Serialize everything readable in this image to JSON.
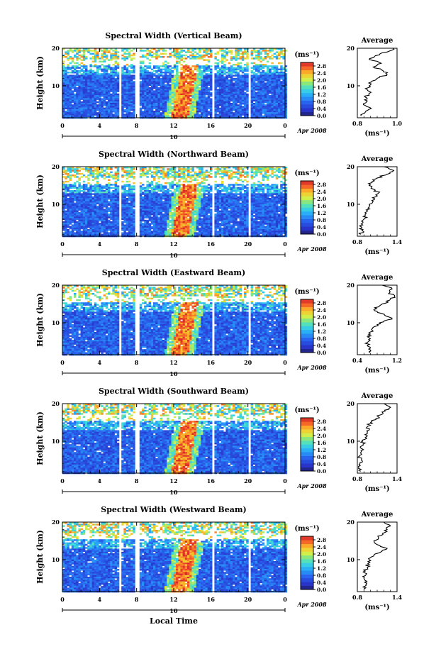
{
  "figure": {
    "shared_xlabel": "Local Time",
    "date_label": "Apr 2008",
    "day_label": "10",
    "colorbar_unit": "(ms⁻¹)",
    "ylabel": "Height (km)"
  },
  "chart_data": [
    {
      "type": "heatmap",
      "title": "Spectral Width (Vertical Beam)",
      "xlabel": "Local Time",
      "ylabel": "Height (km)",
      "x_ticks": [
        "0",
        "4",
        "8",
        "12",
        "16",
        "20",
        "0"
      ],
      "y_ticks": [
        "10",
        "20"
      ],
      "xlim": [
        0,
        24
      ],
      "ylim": [
        1.5,
        20
      ],
      "colorbar_label": "(ms⁻¹)",
      "colorbar_ticks": [
        "0.0",
        "0.4",
        "0.8",
        "1.2",
        "1.6",
        "2.0",
        "2.4",
        "2.8"
      ],
      "colorbar_range": [
        0,
        3.0
      ],
      "data_gaps_hours": [
        [
          5.9,
          6.2
        ],
        [
          7.8,
          8.1
        ],
        [
          16.0,
          16.3
        ],
        [
          20.0,
          20.3
        ]
      ],
      "features": {
        "max_band_time": 13.0,
        "max_band_height_range": [
          1.5,
          15.5
        ]
      },
      "average": {
        "title": "Average",
        "xlabel": "(ms⁻¹)",
        "x_ticks": [
          "0.8",
          "1.0"
        ],
        "xlim": [
          0.8,
          1.0
        ],
        "y_ticks": [
          "10",
          "20"
        ],
        "ylim": [
          1.5,
          20
        ],
        "profile": [
          [
            0.82,
            2
          ],
          [
            0.84,
            3
          ],
          [
            0.87,
            4
          ],
          [
            0.83,
            5
          ],
          [
            0.85,
            6
          ],
          [
            0.84,
            7
          ],
          [
            0.86,
            8
          ],
          [
            0.85,
            9
          ],
          [
            0.86,
            10
          ],
          [
            0.87,
            11
          ],
          [
            0.9,
            12
          ],
          [
            0.95,
            13
          ],
          [
            0.93,
            14
          ],
          [
            0.88,
            15
          ],
          [
            0.92,
            16
          ],
          [
            0.86,
            17
          ],
          [
            0.89,
            18
          ],
          [
            0.95,
            19
          ],
          [
            0.98,
            20
          ]
        ]
      }
    },
    {
      "type": "heatmap",
      "title": "Spectral Width (Northward Beam)",
      "xlabel": "Local Time",
      "ylabel": "Height (km)",
      "x_ticks": [
        "0",
        "4",
        "8",
        "12",
        "16",
        "20",
        "0"
      ],
      "y_ticks": [
        "10",
        "20"
      ],
      "xlim": [
        0,
        24
      ],
      "ylim": [
        1.5,
        20
      ],
      "colorbar_label": "(ms⁻¹)",
      "colorbar_ticks": [
        "0.0",
        "0.4",
        "0.8",
        "1.2",
        "1.6",
        "2.0",
        "2.4",
        "2.8"
      ],
      "colorbar_range": [
        0,
        3.0
      ],
      "data_gaps_hours": [
        [
          5.9,
          6.2
        ],
        [
          7.8,
          8.1
        ],
        [
          16.0,
          16.3
        ],
        [
          20.0,
          20.3
        ]
      ],
      "features": {
        "max_band_time": 13.0,
        "max_band_height_range": [
          1.5,
          15.5
        ]
      },
      "average": {
        "title": "Average",
        "xlabel": "(ms⁻¹)",
        "x_ticks": [
          "0.8",
          "1.4"
        ],
        "xlim": [
          0.8,
          1.4
        ],
        "y_ticks": [
          "10",
          "20"
        ],
        "ylim": [
          1.5,
          20
        ],
        "profile": [
          [
            0.85,
            2
          ],
          [
            0.87,
            3
          ],
          [
            0.86,
            4
          ],
          [
            0.88,
            5
          ],
          [
            0.9,
            6
          ],
          [
            0.92,
            7
          ],
          [
            0.94,
            8
          ],
          [
            0.96,
            9
          ],
          [
            0.98,
            10
          ],
          [
            1.02,
            11
          ],
          [
            1.08,
            12
          ],
          [
            1.12,
            13
          ],
          [
            1.05,
            14
          ],
          [
            0.98,
            15
          ],
          [
            1.02,
            16
          ],
          [
            1.1,
            17
          ],
          [
            1.25,
            18
          ],
          [
            1.35,
            19
          ],
          [
            1.2,
            20
          ]
        ]
      }
    },
    {
      "type": "heatmap",
      "title": "Spectral Width (Eastward Beam)",
      "xlabel": "Local Time",
      "ylabel": "Height (km)",
      "x_ticks": [
        "0",
        "4",
        "8",
        "12",
        "16",
        "20",
        "0"
      ],
      "y_ticks": [
        "10",
        "20"
      ],
      "xlim": [
        0,
        24
      ],
      "ylim": [
        1.5,
        20
      ],
      "colorbar_label": "(ms⁻¹)",
      "colorbar_ticks": [
        "0.0",
        "0.4",
        "0.8",
        "1.2",
        "1.6",
        "2.0",
        "2.4",
        "2.8"
      ],
      "colorbar_range": [
        0,
        3.0
      ],
      "data_gaps_hours": [
        [
          5.9,
          6.2
        ],
        [
          7.8,
          8.1
        ],
        [
          16.0,
          16.3
        ],
        [
          20.0,
          20.3
        ]
      ],
      "features": {
        "max_band_time": 13.0,
        "max_band_height_range": [
          1.5,
          15.5
        ]
      },
      "average": {
        "title": "Average",
        "xlabel": "(ms⁻¹)",
        "x_ticks": [
          "0.4",
          "1.2"
        ],
        "xlim": [
          0.4,
          1.2
        ],
        "y_ticks": [
          "10",
          "20"
        ],
        "ylim": [
          1.5,
          20
        ],
        "profile": [
          [
            0.65,
            2
          ],
          [
            0.63,
            3
          ],
          [
            0.6,
            4
          ],
          [
            0.62,
            5
          ],
          [
            0.64,
            6
          ],
          [
            0.66,
            7
          ],
          [
            0.7,
            8
          ],
          [
            0.75,
            9
          ],
          [
            0.85,
            10
          ],
          [
            1.1,
            11
          ],
          [
            0.95,
            12
          ],
          [
            0.8,
            13
          ],
          [
            0.75,
            14
          ],
          [
            0.9,
            15
          ],
          [
            1.05,
            16
          ],
          [
            1.15,
            17
          ],
          [
            1.05,
            18
          ],
          [
            1.1,
            19
          ],
          [
            0.9,
            20
          ]
        ]
      }
    },
    {
      "type": "heatmap",
      "title": "Spectral Width (Southward Beam)",
      "xlabel": "Local Time",
      "ylabel": "Height (km)",
      "x_ticks": [
        "0",
        "4",
        "8",
        "12",
        "16",
        "20",
        "0"
      ],
      "y_ticks": [
        "10",
        "20"
      ],
      "xlim": [
        0,
        24
      ],
      "ylim": [
        1.5,
        20
      ],
      "colorbar_label": "(ms⁻¹)",
      "colorbar_ticks": [
        "0.0",
        "0.4",
        "0.8",
        "1.2",
        "1.6",
        "2.0",
        "2.4",
        "2.8"
      ],
      "colorbar_range": [
        0,
        3.0
      ],
      "data_gaps_hours": [
        [
          5.9,
          6.2
        ],
        [
          7.8,
          8.1
        ],
        [
          16.0,
          16.3
        ],
        [
          20.0,
          20.3
        ]
      ],
      "features": {
        "max_band_time": 13.0,
        "max_band_height_range": [
          1.5,
          15.5
        ]
      },
      "average": {
        "title": "Average",
        "xlabel": "(ms⁻¹)",
        "x_ticks": [
          "0.8",
          "1.4"
        ],
        "xlim": [
          0.8,
          1.4
        ],
        "y_ticks": [
          "10",
          "20"
        ],
        "ylim": [
          1.5,
          20
        ],
        "profile": [
          [
            0.85,
            2
          ],
          [
            0.82,
            3
          ],
          [
            0.84,
            4
          ],
          [
            0.86,
            5
          ],
          [
            0.83,
            6
          ],
          [
            0.85,
            7
          ],
          [
            0.87,
            8
          ],
          [
            0.89,
            9
          ],
          [
            0.88,
            10
          ],
          [
            0.92,
            11
          ],
          [
            0.95,
            12
          ],
          [
            0.98,
            13
          ],
          [
            0.96,
            14
          ],
          [
            1.0,
            15
          ],
          [
            1.08,
            16
          ],
          [
            1.15,
            17
          ],
          [
            1.22,
            18
          ],
          [
            1.3,
            19
          ],
          [
            1.2,
            20
          ]
        ]
      }
    },
    {
      "type": "heatmap",
      "title": "Spectral Width (Westward Beam)",
      "xlabel": "Local Time",
      "ylabel": "Height (km)",
      "x_ticks": [
        "0",
        "4",
        "8",
        "12",
        "16",
        "20",
        "0"
      ],
      "y_ticks": [
        "10",
        "20"
      ],
      "xlim": [
        0,
        24
      ],
      "ylim": [
        1.5,
        20
      ],
      "colorbar_label": "(ms⁻¹)",
      "colorbar_ticks": [
        "0.0",
        "0.4",
        "0.8",
        "1.2",
        "1.6",
        "2.0",
        "2.4",
        "2.8"
      ],
      "colorbar_range": [
        0,
        3.0
      ],
      "data_gaps_hours": [
        [
          5.9,
          6.2
        ],
        [
          7.8,
          8.1
        ],
        [
          16.0,
          16.3
        ],
        [
          20.0,
          20.3
        ]
      ],
      "features": {
        "max_band_time": 13.0,
        "max_band_height_range": [
          1.5,
          15.5
        ]
      },
      "average": {
        "title": "Average",
        "xlabel": "(ms⁻¹)",
        "x_ticks": [
          "0.8",
          "1.4"
        ],
        "xlim": [
          0.8,
          1.4
        ],
        "y_ticks": [
          "10",
          "20"
        ],
        "ylim": [
          1.5,
          20
        ],
        "profile": [
          [
            0.9,
            2
          ],
          [
            0.92,
            3
          ],
          [
            0.91,
            4
          ],
          [
            0.9,
            5
          ],
          [
            0.93,
            6
          ],
          [
            0.92,
            7
          ],
          [
            0.95,
            8
          ],
          [
            0.96,
            9
          ],
          [
            0.98,
            10
          ],
          [
            1.05,
            11
          ],
          [
            1.15,
            12
          ],
          [
            1.25,
            13
          ],
          [
            1.1,
            14
          ],
          [
            1.05,
            15
          ],
          [
            1.12,
            16
          ],
          [
            1.18,
            17
          ],
          [
            1.25,
            18
          ],
          [
            1.3,
            19
          ],
          [
            1.2,
            20
          ]
        ]
      }
    }
  ]
}
